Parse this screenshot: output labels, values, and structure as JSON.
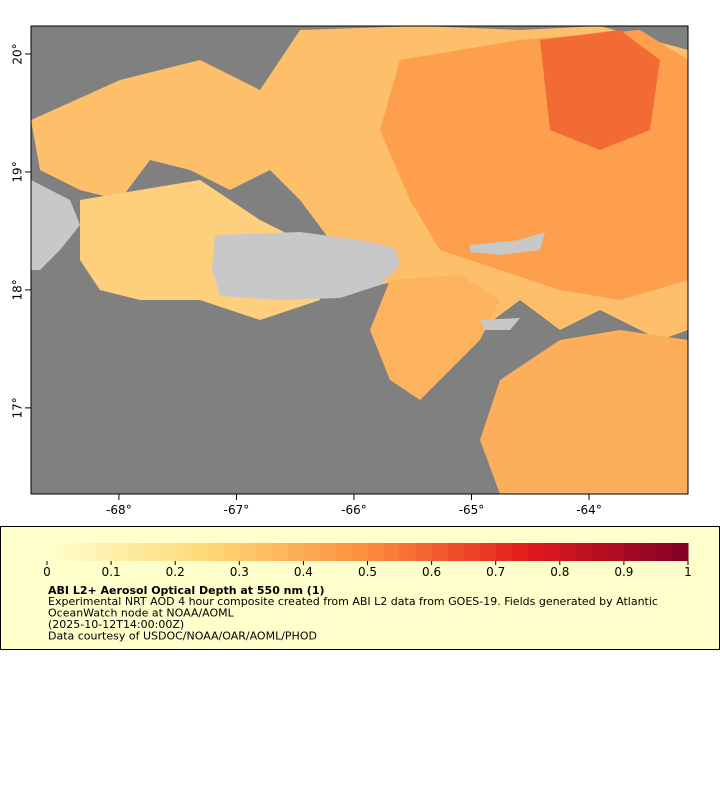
{
  "map": {
    "xlim": [
      -68.748,
      -63.158
    ],
    "ylim": [
      16.27,
      20.237
    ],
    "xticks": [
      {
        "value": -68,
        "label": "-68°"
      },
      {
        "value": -67,
        "label": "-67°"
      },
      {
        "value": -66,
        "label": "-66°"
      },
      {
        "value": -65,
        "label": "-65°"
      },
      {
        "value": -64,
        "label": "-64°"
      }
    ],
    "yticks": [
      {
        "value": 20,
        "label": "20°"
      },
      {
        "value": 19,
        "label": "19°"
      },
      {
        "value": 18,
        "label": "18°"
      },
      {
        "value": 17,
        "label": "17°"
      }
    ]
  },
  "colorbar": {
    "lim": [
      0,
      1
    ],
    "ticks": [
      0,
      0.1,
      0.2,
      0.3,
      0.4,
      0.5,
      0.6,
      0.7,
      0.8,
      0.9,
      1
    ],
    "colors": [
      "#ffffcc",
      "#fed976",
      "#fd8d3c",
      "#e31a1c",
      "#800026"
    ]
  },
  "legend": {
    "title": "ABI L2+ Aerosol Optical Depth at 550 nm (1)",
    "lines": [
      "Experimental NRT AOD 4 hour composite created from ABI L2 data from GOES-19. Fields generated by Atlantic",
      "OceanWatch node at NOAA/AOML",
      "(2025-10-12T14:00:00Z)",
      "Data courtesy of USDOC/NOAA/OAR/AOML/PHOD"
    ]
  }
}
